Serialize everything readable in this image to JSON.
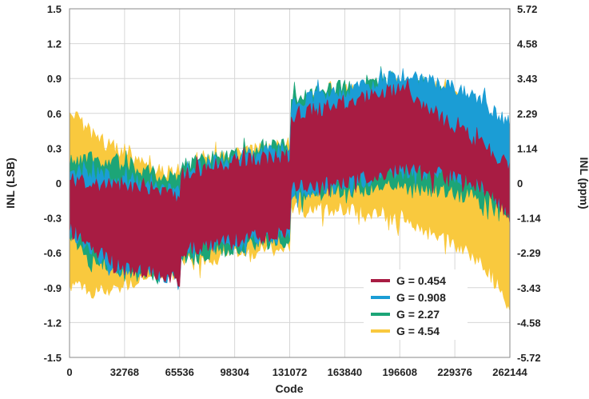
{
  "chart_data": {
    "type": "area",
    "title": "",
    "xlabel": "Code",
    "ylabel": "INL (LSB)",
    "ylabel_right": "INL (ppm)",
    "xlim": [
      0,
      262144
    ],
    "ylim": [
      -1.5,
      1.5
    ],
    "x_ticks": [
      "0",
      "32768",
      "65536",
      "98304",
      "131072",
      "163840",
      "196608",
      "229376",
      "262144"
    ],
    "y_ticks": [
      "1.5",
      "1.2",
      "0.9",
      "0.6",
      "0.3",
      "0",
      "-0.3",
      "-0.6",
      "-0.9",
      "-1.2",
      "-1.5"
    ],
    "y_ticks_right": [
      "5.72",
      "4.58",
      "3.43",
      "2.29",
      "1.14",
      "0",
      "-1.14",
      "-2.29",
      "-3.43",
      "-4.58",
      "-5.72"
    ],
    "grid": true,
    "legend_position": "bottom-right",
    "series": [
      {
        "name": "G = 4.54",
        "color": "#F9C93E",
        "x": [
          0,
          16384,
          32768,
          49152,
          65536,
          65537,
          98304,
          131072,
          131073,
          163840,
          196608,
          229376,
          245760,
          262144
        ],
        "upper": [
          0.7,
          0.45,
          0.32,
          0.22,
          0.1,
          0.18,
          0.3,
          0.42,
          0.7,
          0.85,
          0.9,
          0.8,
          0.55,
          0.3
        ],
        "lower": [
          -0.95,
          -1.0,
          -0.95,
          -0.85,
          -0.85,
          -0.75,
          -0.68,
          -0.6,
          -0.3,
          -0.28,
          -0.35,
          -0.6,
          -0.75,
          -1.1
        ]
      },
      {
        "name": "G = 2.27",
        "color": "#1CA577",
        "x": [
          0,
          16384,
          32768,
          49152,
          65536,
          65537,
          98304,
          131072,
          131073,
          163840,
          196608,
          229376,
          245760,
          262144
        ],
        "upper": [
          0.25,
          0.28,
          0.22,
          0.15,
          0.12,
          0.22,
          0.32,
          0.4,
          0.8,
          0.9,
          0.92,
          0.72,
          0.52,
          0.3
        ],
        "lower": [
          -0.52,
          -0.72,
          -0.85,
          -0.85,
          -0.85,
          -0.72,
          -0.62,
          -0.55,
          -0.18,
          -0.13,
          -0.1,
          -0.15,
          -0.2,
          -0.32
        ]
      },
      {
        "name": "G = 0.908",
        "color": "#1B9DD5",
        "x": [
          0,
          16384,
          32768,
          49152,
          65536,
          65537,
          98304,
          131072,
          131073,
          163840,
          196608,
          229376,
          245760,
          262144
        ],
        "upper": [
          0.18,
          0.15,
          0.1,
          0.05,
          0.0,
          0.18,
          0.28,
          0.36,
          0.75,
          0.86,
          1.0,
          0.9,
          0.78,
          0.55
        ],
        "lower": [
          -0.5,
          -0.7,
          -0.82,
          -0.85,
          -0.88,
          -0.68,
          -0.58,
          -0.52,
          -0.15,
          -0.1,
          0.05,
          0.0,
          -0.08,
          -0.3
        ]
      },
      {
        "name": "G = 0.454",
        "color": "#A81C43",
        "x": [
          0,
          16384,
          32768,
          49152,
          65536,
          65537,
          98304,
          131072,
          131073,
          163840,
          196608,
          229376,
          245760,
          262144
        ],
        "upper": [
          0.1,
          0.05,
          0.05,
          0.0,
          -0.05,
          0.15,
          0.25,
          0.3,
          0.65,
          0.75,
          0.88,
          0.55,
          0.4,
          0.2
        ],
        "lower": [
          -0.45,
          -0.65,
          -0.8,
          -0.82,
          -0.9,
          -0.65,
          -0.55,
          -0.5,
          -0.1,
          -0.05,
          0.05,
          0.0,
          -0.1,
          -0.35
        ]
      }
    ],
    "legend": [
      "G = 0.454",
      "G = 0.908",
      "G = 2.27",
      "G = 4.54"
    ]
  }
}
